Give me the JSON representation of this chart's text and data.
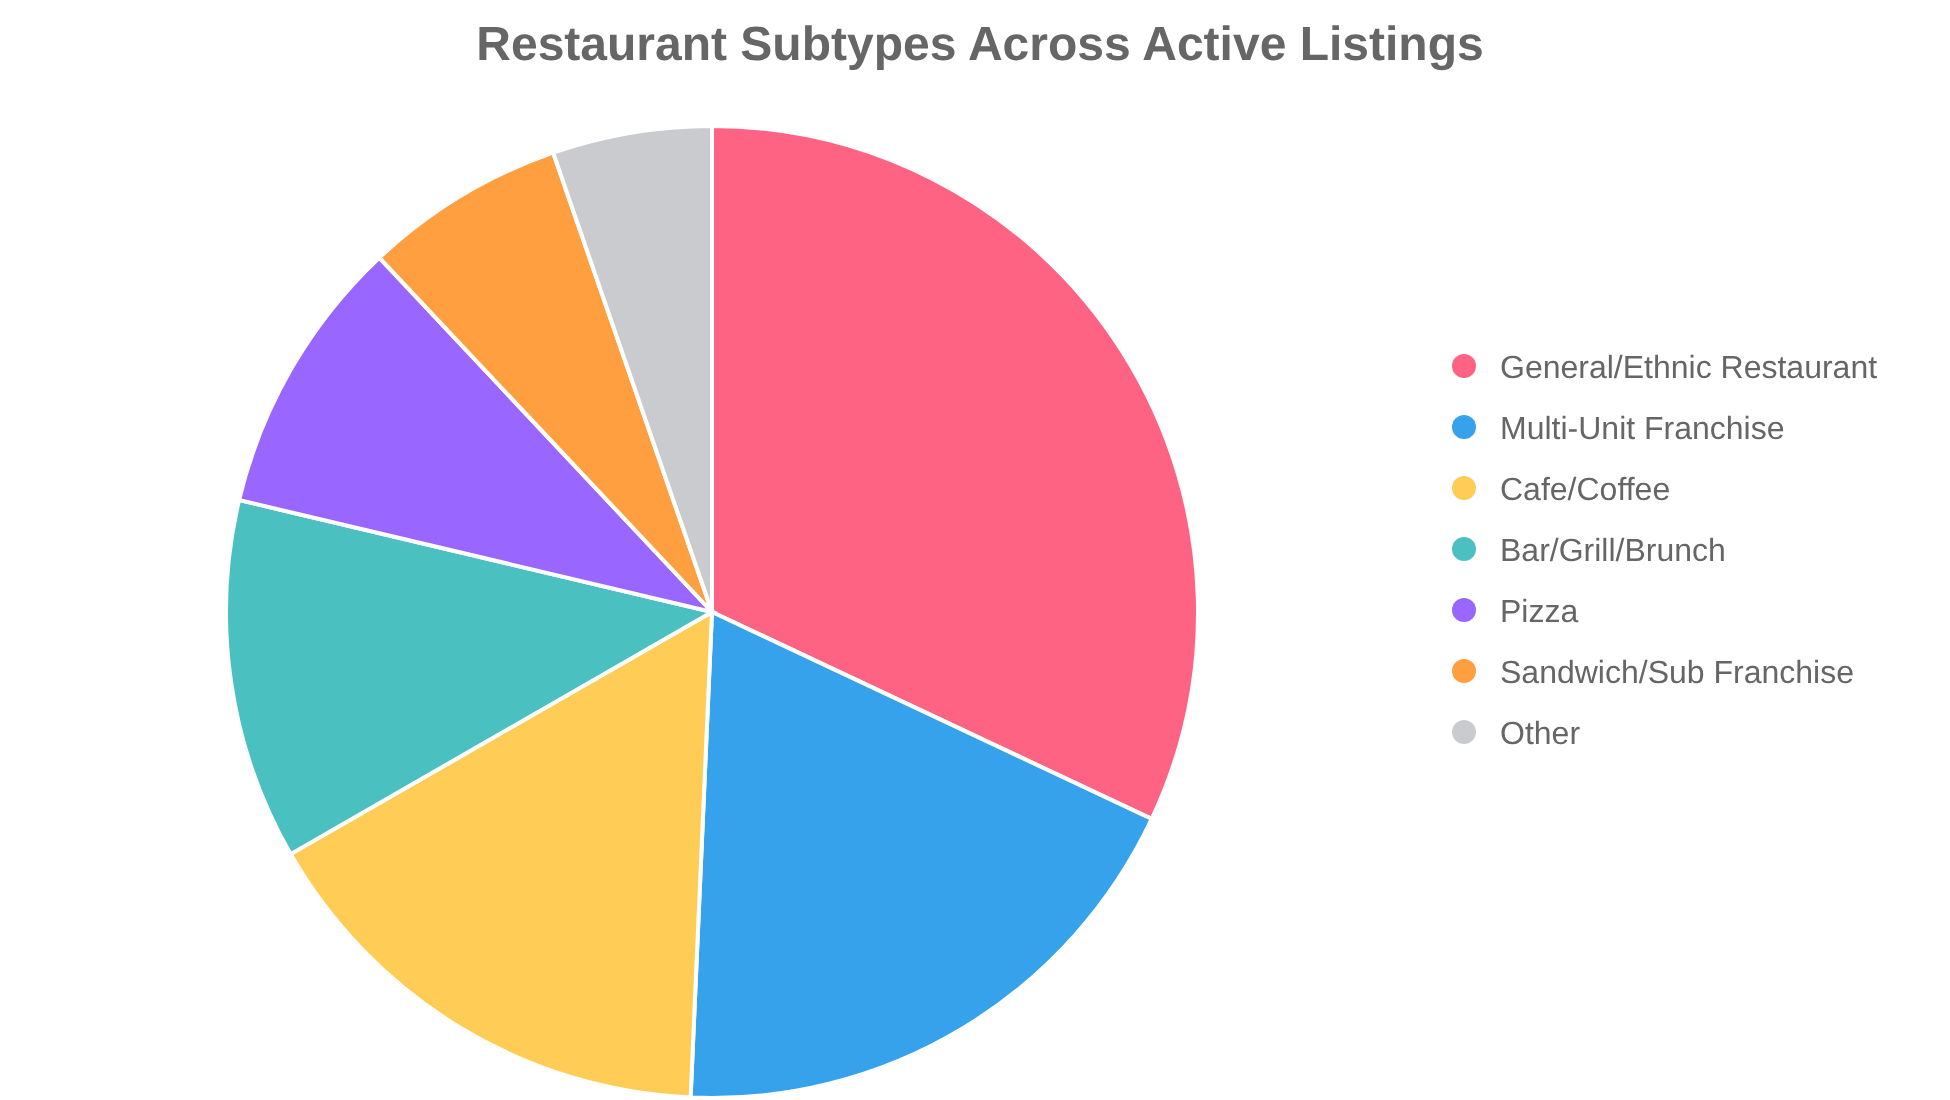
{
  "chart_data": {
    "type": "pie",
    "title": "Restaurant Subtypes Across Active Listings",
    "categories": [
      "General/Ethnic Restaurant",
      "Multi-Unit Franchise",
      "Cafe/Coffee",
      "Bar/Grill/Brunch",
      "Pizza",
      "Sandwich/Sub Franchise",
      "Other"
    ],
    "values": [
      32,
      18.7,
      16,
      12,
      9.3,
      6.7,
      5.3
    ],
    "colors": [
      "#ff6384",
      "#36a2eb",
      "#ffcd56",
      "#4bc0c0",
      "#9966ff",
      "#ff9f40",
      "#c9cbcf"
    ],
    "legend": "right"
  }
}
